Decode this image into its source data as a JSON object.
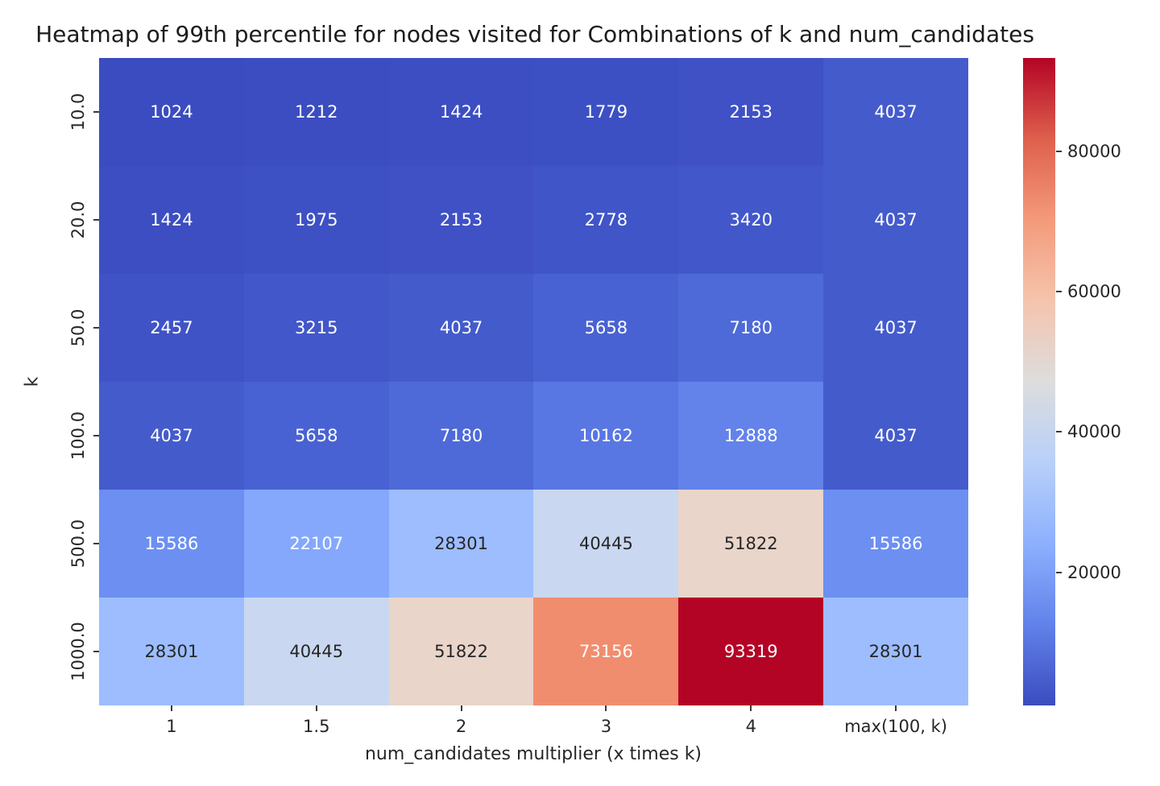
{
  "chart_data": {
    "type": "heatmap",
    "title": "Heatmap of 99th percentile for nodes visited for Combinations of k and num_candidates",
    "xlabel": "num_candidates multiplier (x times k)",
    "ylabel": "k",
    "x_categories": [
      "1",
      "1.5",
      "2",
      "3",
      "4",
      "max(100, k)"
    ],
    "y_categories": [
      "10.0",
      "20.0",
      "50.0",
      "100.0",
      "500.0",
      "1000.0"
    ],
    "values": [
      [
        1024,
        1212,
        1424,
        1779,
        2153,
        4037
      ],
      [
        1424,
        1975,
        2153,
        2778,
        3420,
        4037
      ],
      [
        2457,
        3215,
        4037,
        5658,
        7180,
        4037
      ],
      [
        4037,
        5658,
        7180,
        10162,
        12888,
        4037
      ],
      [
        15586,
        22107,
        28301,
        40445,
        51822,
        15586
      ],
      [
        28301,
        40445,
        51822,
        73156,
        93319,
        28301
      ]
    ],
    "vmin": 1024,
    "vmax": 93319,
    "colormap": "coolwarm",
    "grid": false,
    "legend_position": "right-colorbar",
    "colorbar_ticks": [
      20000,
      40000,
      60000,
      80000
    ],
    "cell_colors": [
      [
        "#3b4cc0",
        "#3c4dc1",
        "#3c4ec2",
        "#3d50c3",
        "#3f51c5",
        "#445bcc"
      ],
      [
        "#3c4ec2",
        "#3e51c4",
        "#3f51c5",
        "#4055c7",
        "#4258ca",
        "#445bcc"
      ],
      [
        "#3f53c6",
        "#4257c9",
        "#445bcc",
        "#4962d3",
        "#4e6ad8",
        "#445bcc"
      ],
      [
        "#445bcc",
        "#4962d3",
        "#4e6ad8",
        "#5977e3",
        "#6383eb",
        "#445bcc"
      ],
      [
        "#6c8ff1",
        "#85a8fc",
        "#9dbdff",
        "#c9d8f0",
        "#e9d5ca",
        "#6c8ff1"
      ],
      [
        "#9dbdff",
        "#c9d8f0",
        "#e9d5ca",
        "#f18d6f",
        "#b40426",
        "#9dbdff"
      ]
    ],
    "cell_text_colors": [
      [
        "#ffffff",
        "#ffffff",
        "#ffffff",
        "#ffffff",
        "#ffffff",
        "#ffffff"
      ],
      [
        "#ffffff",
        "#ffffff",
        "#ffffff",
        "#ffffff",
        "#ffffff",
        "#ffffff"
      ],
      [
        "#ffffff",
        "#ffffff",
        "#ffffff",
        "#ffffff",
        "#ffffff",
        "#ffffff"
      ],
      [
        "#ffffff",
        "#ffffff",
        "#ffffff",
        "#ffffff",
        "#ffffff",
        "#ffffff"
      ],
      [
        "#ffffff",
        "#ffffff",
        "#262626",
        "#262626",
        "#262626",
        "#ffffff"
      ],
      [
        "#262626",
        "#262626",
        "#262626",
        "#ffffff",
        "#ffffff",
        "#262626"
      ]
    ],
    "colorbar_gradient_bottom_to_top": [
      "#3b4cc0",
      "#6282ea",
      "#8db0fe",
      "#b8d0f9",
      "#dddddd",
      "#f5c4ad",
      "#f49a7b",
      "#de604d",
      "#b40426"
    ]
  },
  "style": {
    "title_color": "#1c1c1c",
    "tick_text_color": "#262626",
    "annotation_light": "#ffffff",
    "annotation_dark": "#262626"
  }
}
